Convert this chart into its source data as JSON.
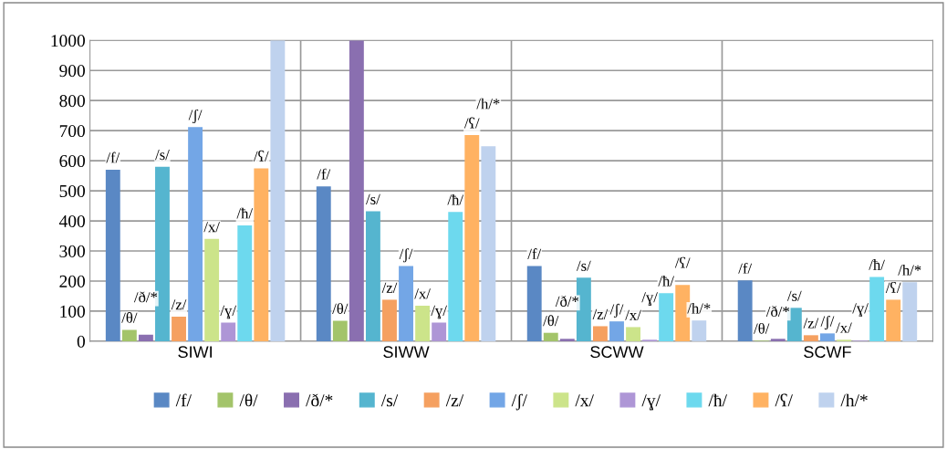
{
  "chart_data": {
    "type": "bar",
    "categories": [
      "SIWI",
      "SIWW",
      "SCWW",
      "SCWF"
    ],
    "series": [
      {
        "name": "/f/",
        "color": "#5a88c4",
        "values": [
          570,
          515,
          250,
          202
        ],
        "value_labels": [
          "/f/",
          "/f/",
          "/f/",
          "/f/"
        ]
      },
      {
        "name": "/θ/",
        "color": "#a3c46a",
        "values": [
          38,
          68,
          28,
          2
        ],
        "value_labels": [
          "/θ/",
          "/θ/",
          "/θ/",
          "/θ/"
        ]
      },
      {
        "name": "/ð/*",
        "color": "#8a6fb0",
        "values": [
          22,
          1000,
          8,
          8
        ],
        "value_labels": [
          "/ð/*",
          null,
          "/ð/*",
          "/ð/*"
        ]
      },
      {
        "name": "/s/",
        "color": "#55b5cf",
        "values": [
          580,
          432,
          211,
          111
        ],
        "value_labels": [
          "/s/",
          "/s/",
          "/s/",
          "/s/"
        ]
      },
      {
        "name": "/z/",
        "color": "#f5a060",
        "values": [
          82,
          138,
          50,
          20
        ],
        "value_labels": [
          "/z/",
          "/z/",
          "/z/",
          "/z/"
        ]
      },
      {
        "name": "/ʃ/",
        "color": "#73a6e6",
        "values": [
          712,
          250,
          66,
          26
        ],
        "value_labels": [
          "/ʃ/",
          "/ʃ/",
          "/ʃ/",
          "/ʃ/"
        ]
      },
      {
        "name": "/x/",
        "color": "#cce48a",
        "values": [
          340,
          118,
          47,
          5
        ],
        "value_labels": [
          "/x/",
          "/x/",
          "/x/",
          "/x/"
        ]
      },
      {
        "name": "/ɣ/",
        "color": "#ae96d6",
        "values": [
          62,
          62,
          5,
          2
        ],
        "value_labels": [
          "/ɣ/",
          "/ɣ/",
          "/ɣ/",
          "/ɣ/"
        ]
      },
      {
        "name": "/ħ/",
        "color": "#6dd9ee",
        "values": [
          385,
          430,
          160,
          214
        ],
        "value_labels": [
          "/ħ/",
          "/ħ/",
          "/ħ/",
          "/ħ/"
        ]
      },
      {
        "name": "/ʕ/",
        "color": "#ffb262",
        "values": [
          575,
          685,
          187,
          138
        ],
        "value_labels": [
          "/ʕ/",
          "/ʕ/",
          "/ʕ/",
          "/ʕ/"
        ]
      },
      {
        "name": "/h/*",
        "color": "#bfd2ee",
        "values": [
          1000,
          648,
          69,
          196
        ],
        "value_labels": [
          null,
          "/h/*",
          "/h/*",
          "/h/*"
        ]
      }
    ],
    "ylim": [
      0,
      1000
    ],
    "yticks": [
      0,
      100,
      200,
      300,
      400,
      500,
      600,
      700,
      800,
      900,
      1000
    ],
    "grid": "y",
    "legend": "bottom"
  }
}
